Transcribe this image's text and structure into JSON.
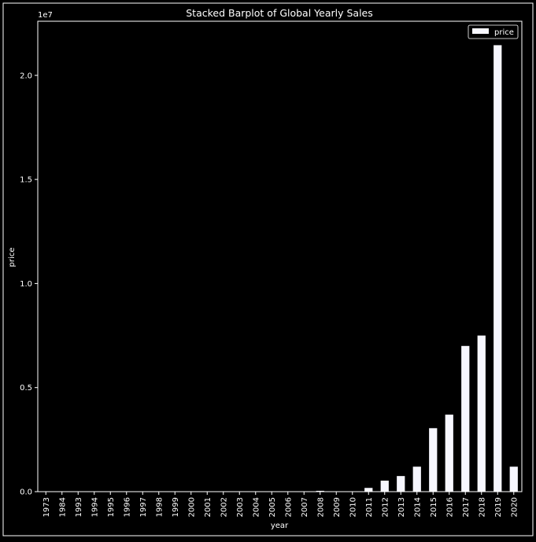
{
  "colors": {
    "background": "#000000",
    "bar": "#f7f7ff",
    "axis": "#ffffff",
    "text": "#ffffff"
  },
  "chart_data": {
    "type": "bar",
    "title": "Stacked Barplot of Global Yearly Sales",
    "xlabel": "year",
    "ylabel": "price",
    "offset_label": "1e7",
    "legend": {
      "entries": [
        "price"
      ],
      "placement": "top-right"
    },
    "grid": false,
    "ylim": [
      0,
      22600000
    ],
    "yticks": [
      0,
      5000000,
      10000000,
      15000000,
      20000000
    ],
    "ytick_labels": [
      "0.0",
      "0.5",
      "1.0",
      "1.5",
      "2.0"
    ],
    "categories": [
      "1973",
      "1984",
      "1993",
      "1994",
      "1995",
      "1996",
      "1997",
      "1998",
      "1999",
      "2000",
      "2001",
      "2002",
      "2003",
      "2004",
      "2005",
      "2006",
      "2007",
      "2008",
      "2009",
      "2010",
      "2011",
      "2012",
      "2013",
      "2014",
      "2015",
      "2016",
      "2017",
      "2018",
      "2019",
      "2020"
    ],
    "series": [
      {
        "name": "price",
        "values": [
          0,
          0,
          0,
          0,
          0,
          0,
          0,
          0,
          0,
          0,
          0,
          0,
          0,
          0,
          0,
          0,
          0,
          40000,
          0,
          0,
          180000,
          530000,
          750000,
          1200000,
          3050000,
          3700000,
          7000000,
          7500000,
          21450000,
          1200000
        ]
      }
    ]
  }
}
